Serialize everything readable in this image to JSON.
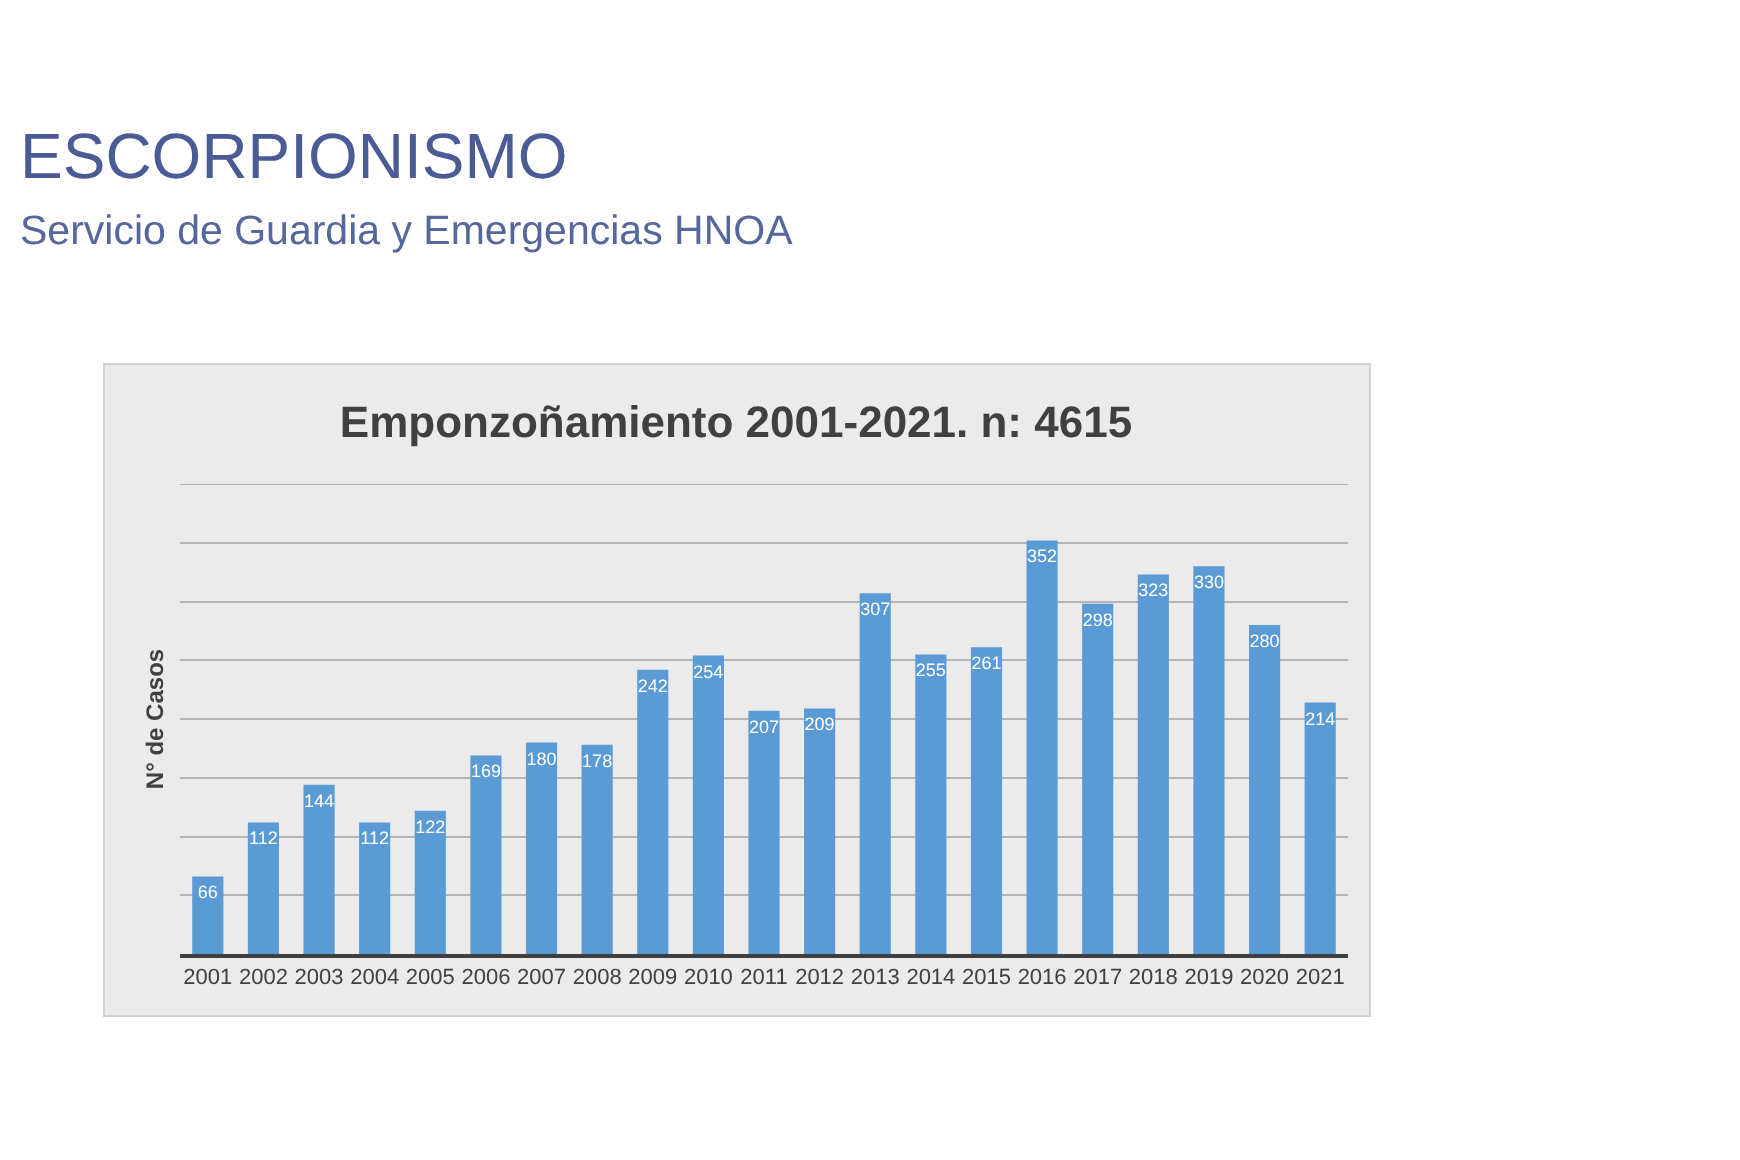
{
  "chart_data": {
    "type": "bar",
    "title": "Emponzoñamiento 2001-2021. n: 4615",
    "ylabel": "N° de Casos",
    "annotations": [
      "ESCORPIONISMO",
      "Servicio de Guardia y Emergencias HNOA"
    ],
    "categories": [
      "2001",
      "2002",
      "2003",
      "2004",
      "2005",
      "2006",
      "2007",
      "2008",
      "2009",
      "2010",
      "2011",
      "2012",
      "2013",
      "2014",
      "2015",
      "2016",
      "2017",
      "2018",
      "2019",
      "2020",
      "2021"
    ],
    "values": [
      66,
      112,
      144,
      112,
      122,
      169,
      180,
      178,
      242,
      254,
      207,
      209,
      307,
      255,
      261,
      352,
      298,
      323,
      330,
      280,
      214
    ],
    "color": "#5b9bd5",
    "ylim": [
      0,
      400
    ],
    "yticks": [
      {
        "value": 50,
        "label": null
      },
      {
        "value": 100,
        "label": null
      },
      {
        "value": 150,
        "label": null
      },
      {
        "value": 200,
        "label": null
      },
      {
        "value": 250,
        "label": null
      },
      {
        "value": 300,
        "label": null
      },
      {
        "value": 350,
        "label": null
      },
      {
        "value": 400,
        "label": null
      }
    ],
    "grid": "y",
    "tick_labels": "x",
    "data_labels": true
  }
}
